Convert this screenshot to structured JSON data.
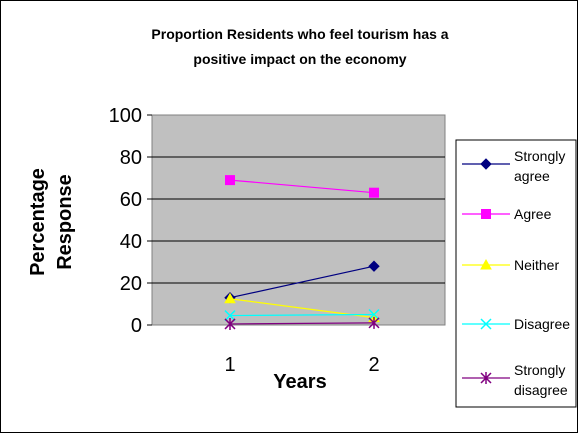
{
  "chart_data": {
    "type": "line",
    "title_lines": [
      "Proportion Residents who feel tourism has a",
      "positive impact on the economy"
    ],
    "xlabel": "Years",
    "ylabel_lines": [
      "Percentage",
      "Response"
    ],
    "categories": [
      "1",
      "2"
    ],
    "ylim": [
      0,
      100
    ],
    "yticks": [
      "0",
      "20",
      "40",
      "60",
      "80",
      "100"
    ],
    "grid": true,
    "plot_background": "#c0c0c0",
    "legend_position": "right",
    "series": [
      {
        "name": "Strongly agree",
        "label_lines": [
          "Strongly",
          "agree"
        ],
        "values": [
          13,
          28
        ],
        "color": "#000080",
        "marker": "diamond"
      },
      {
        "name": "Agree",
        "label_lines": [
          "Agree"
        ],
        "values": [
          69,
          63
        ],
        "color": "#ff00ff",
        "marker": "square"
      },
      {
        "name": "Neither",
        "label_lines": [
          "Neither"
        ],
        "values": [
          12.5,
          3.5
        ],
        "color": "#ffff00",
        "marker": "triangle"
      },
      {
        "name": "Disagree",
        "label_lines": [
          "Disagree"
        ],
        "values": [
          4.5,
          5
        ],
        "color": "#00ffff",
        "marker": "x"
      },
      {
        "name": "Strongly disagree",
        "label_lines": [
          "Strongly",
          "disagree"
        ],
        "values": [
          0.5,
          1
        ],
        "color": "#800080",
        "marker": "star"
      }
    ]
  }
}
